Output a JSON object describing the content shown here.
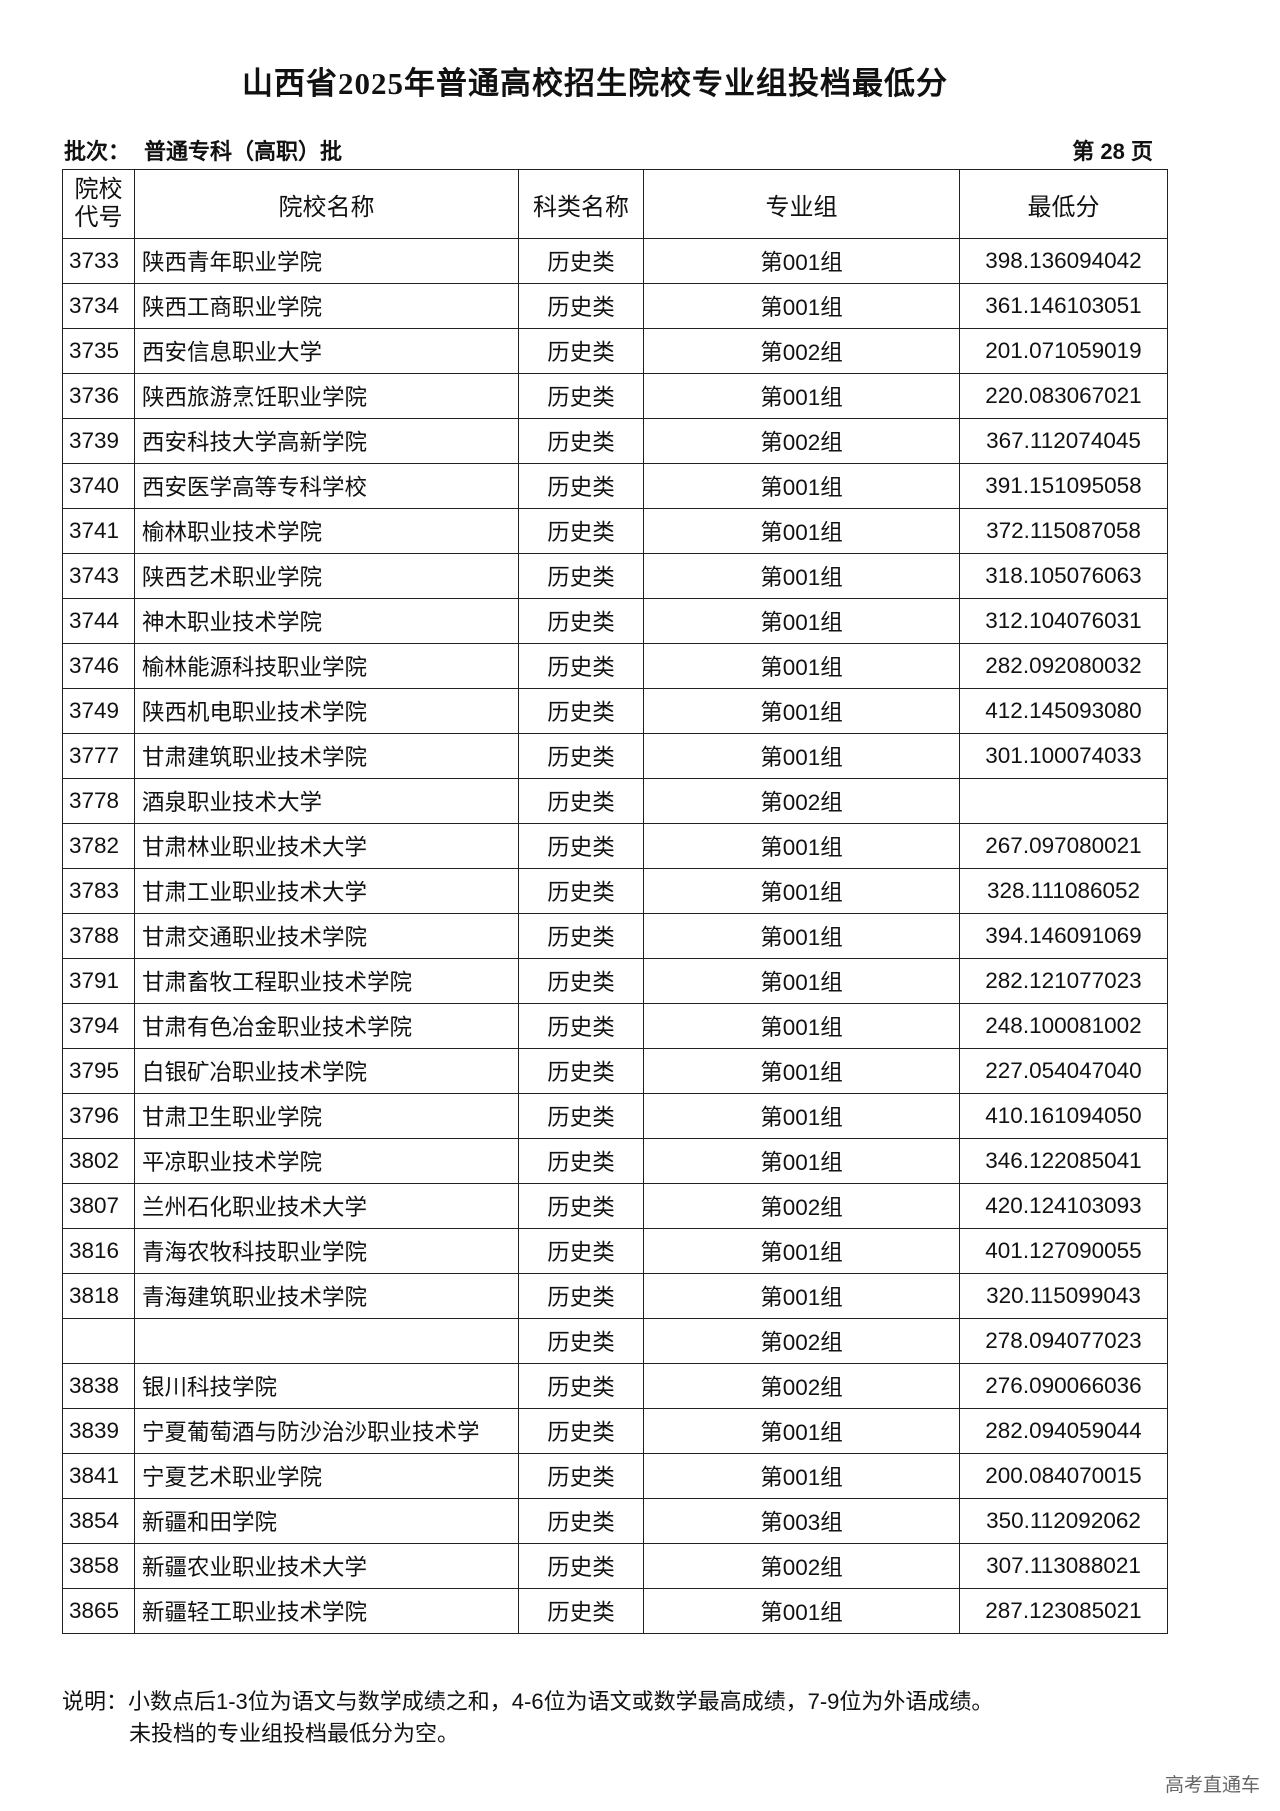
{
  "title": "山西省2025年普通高校招生院校专业组投档最低分",
  "batch": {
    "label": "批次：",
    "value": "普通专科（高职）批"
  },
  "page": "第 28 页",
  "table": {
    "headers": {
      "code": "院校代号",
      "name": "院校名称",
      "category": "科类名称",
      "group": "专业组",
      "score": "最低分"
    },
    "rows": [
      {
        "code": "3733",
        "name": "陕西青年职业学院",
        "category": "历史类",
        "group": "第001组",
        "score": "398.136094042"
      },
      {
        "code": "3734",
        "name": "陕西工商职业学院",
        "category": "历史类",
        "group": "第001组",
        "score": "361.146103051"
      },
      {
        "code": "3735",
        "name": "西安信息职业大学",
        "category": "历史类",
        "group": "第002组",
        "score": "201.071059019"
      },
      {
        "code": "3736",
        "name": "陕西旅游烹饪职业学院",
        "category": "历史类",
        "group": "第001组",
        "score": "220.083067021"
      },
      {
        "code": "3739",
        "name": "西安科技大学高新学院",
        "category": "历史类",
        "group": "第002组",
        "score": "367.112074045"
      },
      {
        "code": "3740",
        "name": "西安医学高等专科学校",
        "category": "历史类",
        "group": "第001组",
        "score": "391.151095058"
      },
      {
        "code": "3741",
        "name": "榆林职业技术学院",
        "category": "历史类",
        "group": "第001组",
        "score": "372.115087058"
      },
      {
        "code": "3743",
        "name": "陕西艺术职业学院",
        "category": "历史类",
        "group": "第001组",
        "score": "318.105076063"
      },
      {
        "code": "3744",
        "name": "神木职业技术学院",
        "category": "历史类",
        "group": "第001组",
        "score": "312.104076031"
      },
      {
        "code": "3746",
        "name": "榆林能源科技职业学院",
        "category": "历史类",
        "group": "第001组",
        "score": "282.092080032"
      },
      {
        "code": "3749",
        "name": "陕西机电职业技术学院",
        "category": "历史类",
        "group": "第001组",
        "score": "412.145093080"
      },
      {
        "code": "3777",
        "name": "甘肃建筑职业技术学院",
        "category": "历史类",
        "group": "第001组",
        "score": "301.100074033"
      },
      {
        "code": "3778",
        "name": "酒泉职业技术大学",
        "category": "历史类",
        "group": "第002组",
        "score": ""
      },
      {
        "code": "3782",
        "name": "甘肃林业职业技术大学",
        "category": "历史类",
        "group": "第001组",
        "score": "267.097080021"
      },
      {
        "code": "3783",
        "name": "甘肃工业职业技术大学",
        "category": "历史类",
        "group": "第001组",
        "score": "328.111086052"
      },
      {
        "code": "3788",
        "name": "甘肃交通职业技术学院",
        "category": "历史类",
        "group": "第001组",
        "score": "394.146091069"
      },
      {
        "code": "3791",
        "name": "甘肃畜牧工程职业技术学院",
        "category": "历史类",
        "group": "第001组",
        "score": "282.121077023"
      },
      {
        "code": "3794",
        "name": "甘肃有色冶金职业技术学院",
        "category": "历史类",
        "group": "第001组",
        "score": "248.100081002"
      },
      {
        "code": "3795",
        "name": "白银矿冶职业技术学院",
        "category": "历史类",
        "group": "第001组",
        "score": "227.054047040"
      },
      {
        "code": "3796",
        "name": "甘肃卫生职业学院",
        "category": "历史类",
        "group": "第001组",
        "score": "410.161094050"
      },
      {
        "code": "3802",
        "name": "平凉职业技术学院",
        "category": "历史类",
        "group": "第001组",
        "score": "346.122085041"
      },
      {
        "code": "3807",
        "name": "兰州石化职业技术大学",
        "category": "历史类",
        "group": "第002组",
        "score": "420.124103093"
      },
      {
        "code": "3816",
        "name": "青海农牧科技职业学院",
        "category": "历史类",
        "group": "第001组",
        "score": "401.127090055"
      },
      {
        "code": "3818",
        "name": "青海建筑职业技术学院",
        "category": "历史类",
        "group": "第001组",
        "score": "320.115099043"
      },
      {
        "code": "",
        "name": "",
        "category": "历史类",
        "group": "第002组",
        "score": "278.094077023"
      },
      {
        "code": "3838",
        "name": "银川科技学院",
        "category": "历史类",
        "group": "第002组",
        "score": "276.090066036"
      },
      {
        "code": "3839",
        "name": "宁夏葡萄酒与防沙治沙职业技术学",
        "category": "历史类",
        "group": "第001组",
        "score": "282.094059044"
      },
      {
        "code": "3841",
        "name": "宁夏艺术职业学院",
        "category": "历史类",
        "group": "第001组",
        "score": "200.084070015"
      },
      {
        "code": "3854",
        "name": "新疆和田学院",
        "category": "历史类",
        "group": "第003组",
        "score": "350.112092062"
      },
      {
        "code": "3858",
        "name": "新疆农业职业技术大学",
        "category": "历史类",
        "group": "第002组",
        "score": "307.113088021"
      },
      {
        "code": "3865",
        "name": "新疆轻工职业技术学院",
        "category": "历史类",
        "group": "第001组",
        "score": "287.123085021"
      }
    ]
  },
  "notes": {
    "line1": "说明：小数点后1-3位为语文与数学成绩之和，4-6位为语文或数学最高成绩，7-9位为外语成绩。",
    "line2": "未投档的专业组投档最低分为空。"
  },
  "watermark": "高考直通车"
}
